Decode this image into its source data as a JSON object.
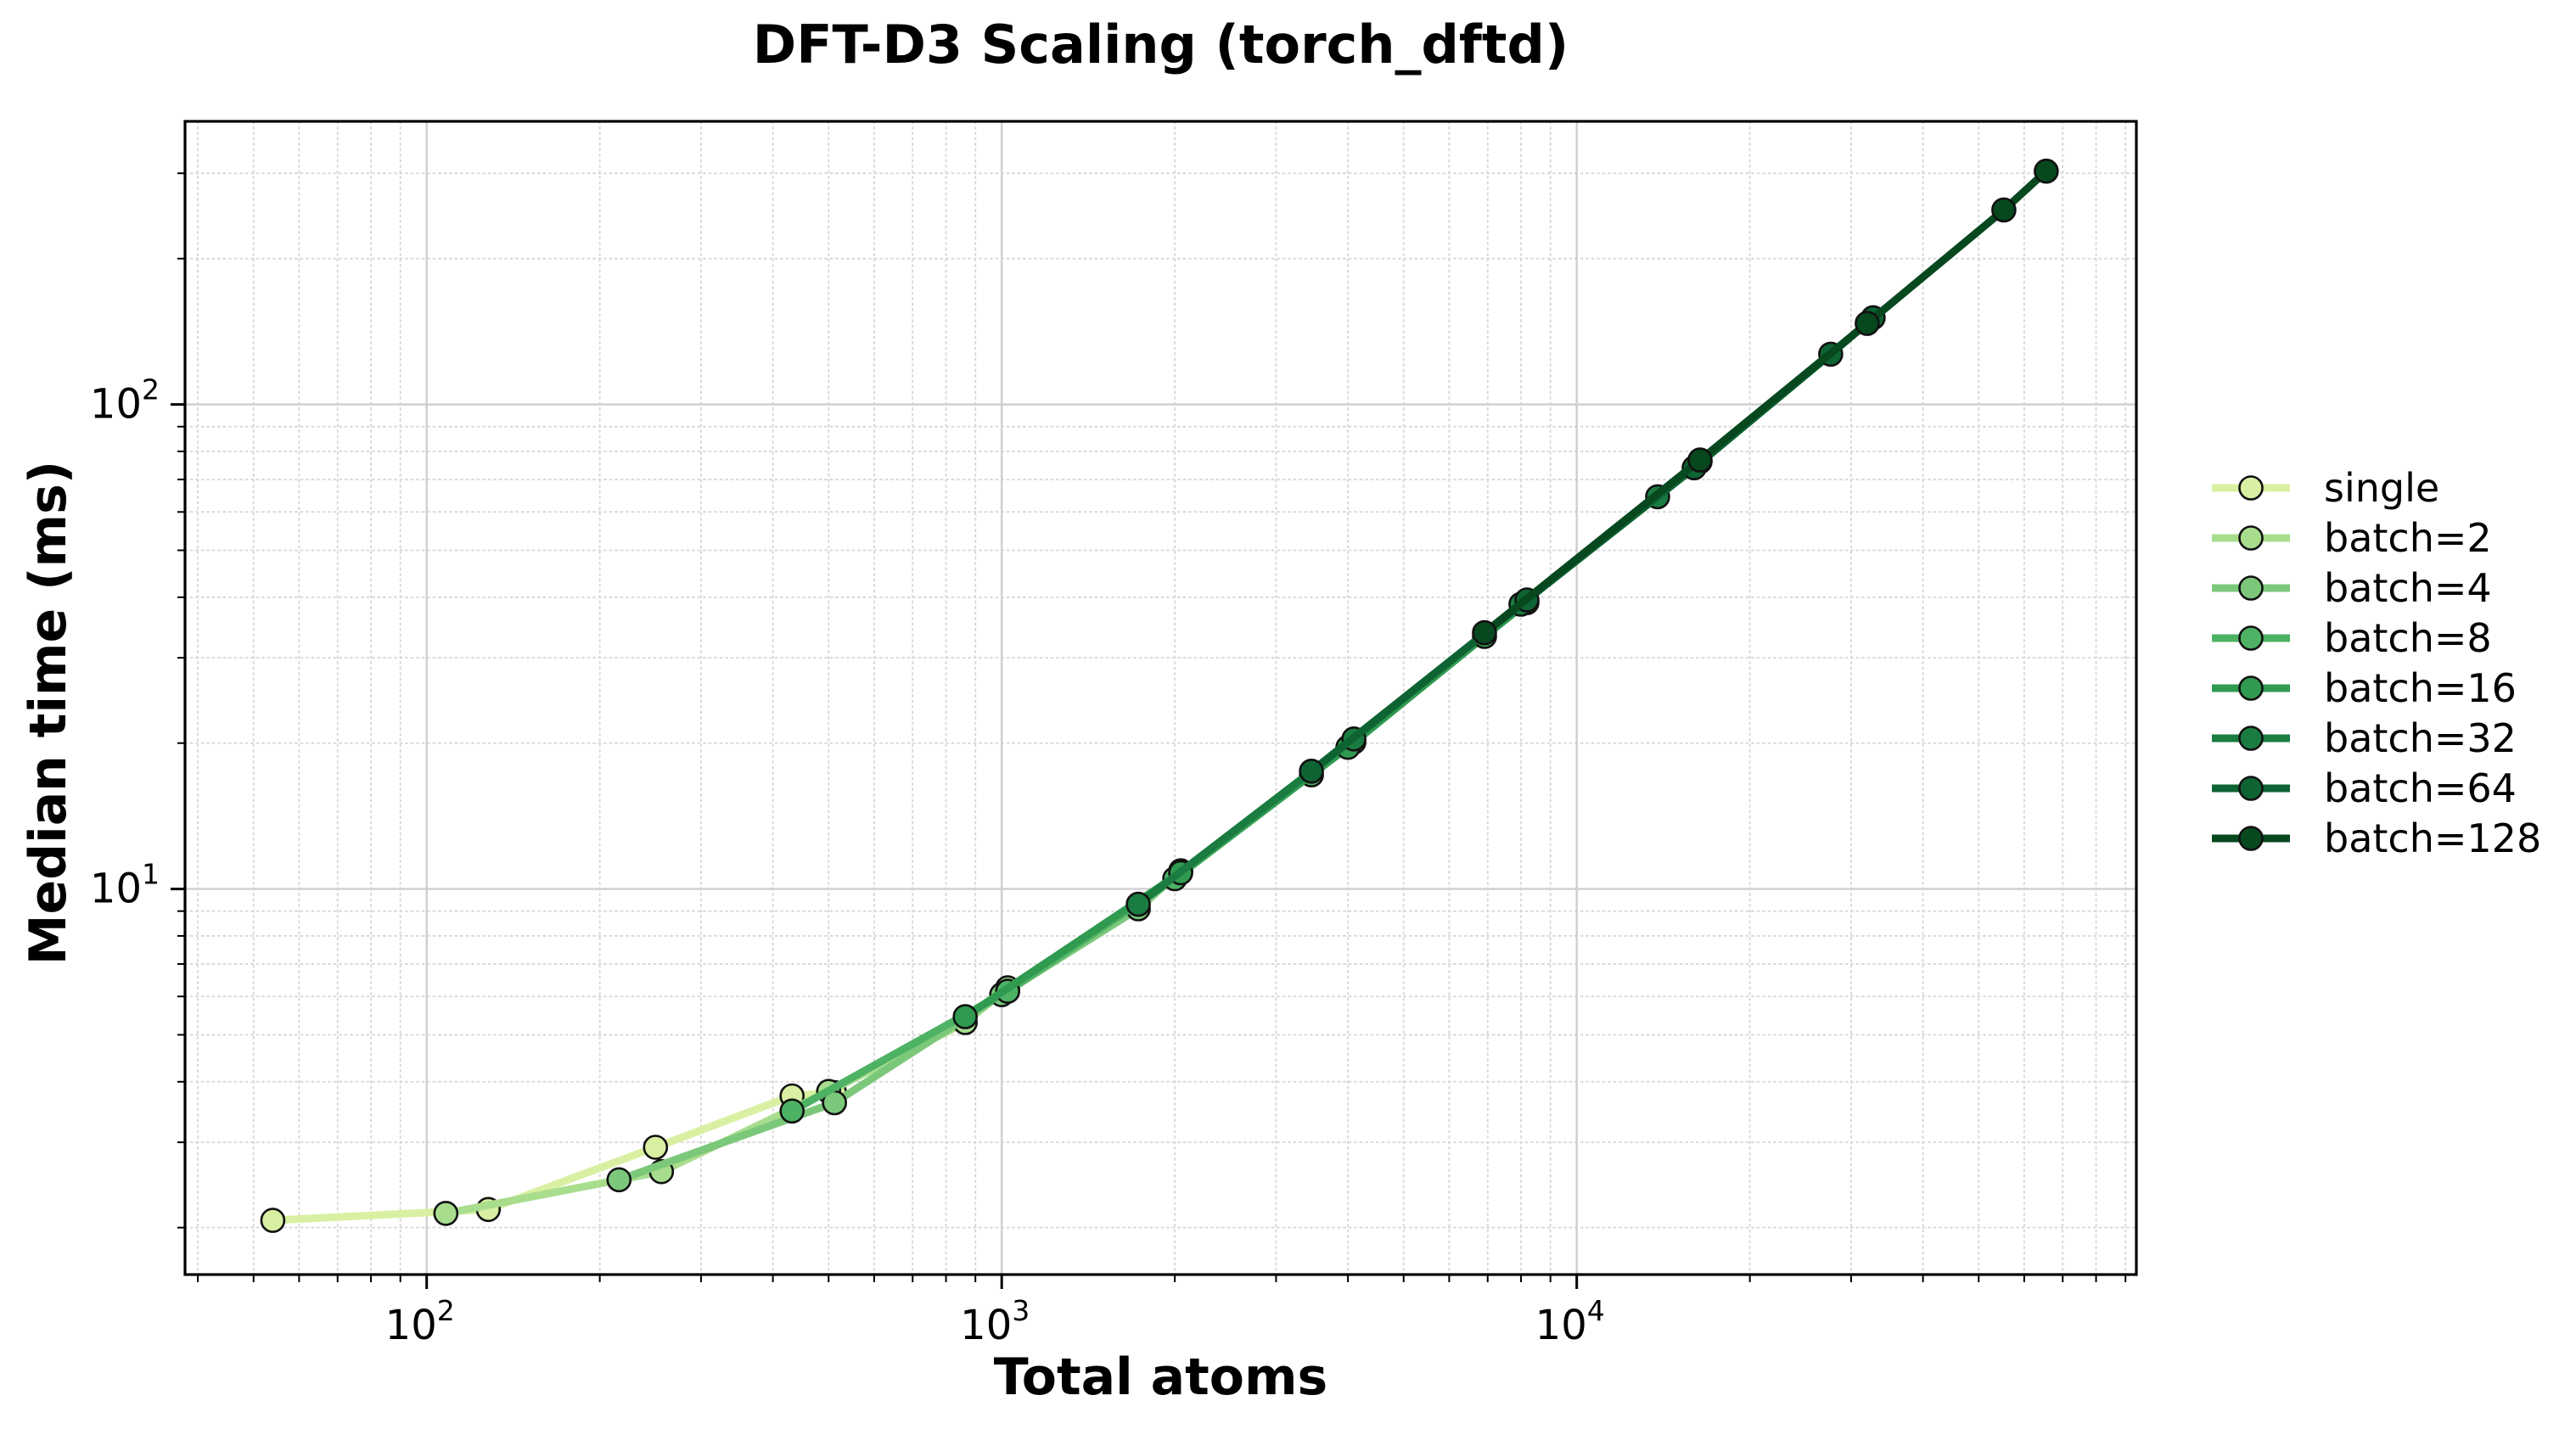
{
  "figure": {
    "title": "DFT-D3 Scaling (torch_dftd)",
    "x_axis": {
      "label": "Total atoms",
      "scale": "log",
      "major_ticks": [
        {
          "base": "10",
          "exp": "2",
          "value": 100
        },
        {
          "base": "10",
          "exp": "3",
          "value": 1000
        },
        {
          "base": "10",
          "exp": "4",
          "value": 10000
        }
      ]
    },
    "y_axis": {
      "label": "Median time (ms)",
      "scale": "log",
      "major_ticks": [
        {
          "base": "10",
          "exp": "1",
          "value": 10
        },
        {
          "base": "10",
          "exp": "2",
          "value": 100
        }
      ]
    },
    "grid": {
      "major": true,
      "minor": true
    }
  },
  "legend": {
    "position": "center-right-outside",
    "frame": false,
    "items": [
      "single",
      "batch=2",
      "batch=4",
      "batch=8",
      "batch=16",
      "batch=32",
      "batch=64",
      "batch=128"
    ]
  },
  "colors": {
    "background": "#ffffff",
    "spine": "#000000",
    "major_grid": "#cfcfcf",
    "minor_grid": "#d9d9d9",
    "marker_edge": "#111111",
    "text": "#000000"
  },
  "chart_data": {
    "type": "line",
    "title": "DFT-D3 Scaling (torch_dftd)",
    "xlabel": "Total atoms",
    "ylabel": "Median time (ms)",
    "x_scale": "log",
    "y_scale": "log",
    "xlim": [
      38,
      94000
    ],
    "ylim": [
      1.6,
      384
    ],
    "grid": true,
    "legend_position": "right outside, vertically centered",
    "marker": "o",
    "series": [
      {
        "name": "single",
        "color": "#d9f0a3",
        "points": [
          [
            54,
            2.07
          ],
          [
            128,
            2.18
          ],
          [
            250,
            2.93
          ],
          [
            432,
            3.74
          ],
          [
            512,
            3.8
          ]
        ]
      },
      {
        "name": "batch=2",
        "color": "#a8dd8e",
        "points": [
          [
            108,
            2.14
          ],
          [
            256,
            2.61
          ],
          [
            500,
            3.82
          ],
          [
            864,
            5.3
          ],
          [
            1024,
            6.25
          ]
        ]
      },
      {
        "name": "batch=4",
        "color": "#7cc87b",
        "points": [
          [
            216,
            2.51
          ],
          [
            512,
            3.62
          ],
          [
            1000,
            6.05
          ],
          [
            1728,
            9.1
          ],
          [
            2048,
            10.9
          ]
        ]
      },
      {
        "name": "batch=8",
        "color": "#4eb264",
        "points": [
          [
            432,
            3.48
          ],
          [
            1024,
            6.15
          ],
          [
            2000,
            10.5
          ],
          [
            3456,
            17.2
          ],
          [
            4096,
            20.1
          ]
        ]
      },
      {
        "name": "batch=16",
        "color": "#2f9a50",
        "points": [
          [
            864,
            5.45
          ],
          [
            2048,
            10.8
          ],
          [
            4000,
            19.6
          ],
          [
            6912,
            33.2
          ],
          [
            8192,
            39.0
          ]
        ]
      },
      {
        "name": "batch=32",
        "color": "#1a7c40",
        "points": [
          [
            1728,
            9.3
          ],
          [
            4096,
            20.4
          ],
          [
            8000,
            38.7
          ],
          [
            13824,
            64.5
          ],
          [
            16384,
            76.2
          ]
        ]
      },
      {
        "name": "batch=64",
        "color": "#0e6333",
        "points": [
          [
            3456,
            17.5
          ],
          [
            8192,
            39.5
          ],
          [
            16000,
            74.0
          ],
          [
            27648,
            127.0
          ],
          [
            32768,
            151.0
          ]
        ]
      },
      {
        "name": "batch=128",
        "color": "#07481f",
        "points": [
          [
            6912,
            33.8
          ],
          [
            16384,
            76.8
          ],
          [
            32000,
            147.0
          ],
          [
            55296,
            252.0
          ],
          [
            65536,
            303.0
          ]
        ]
      }
    ]
  }
}
